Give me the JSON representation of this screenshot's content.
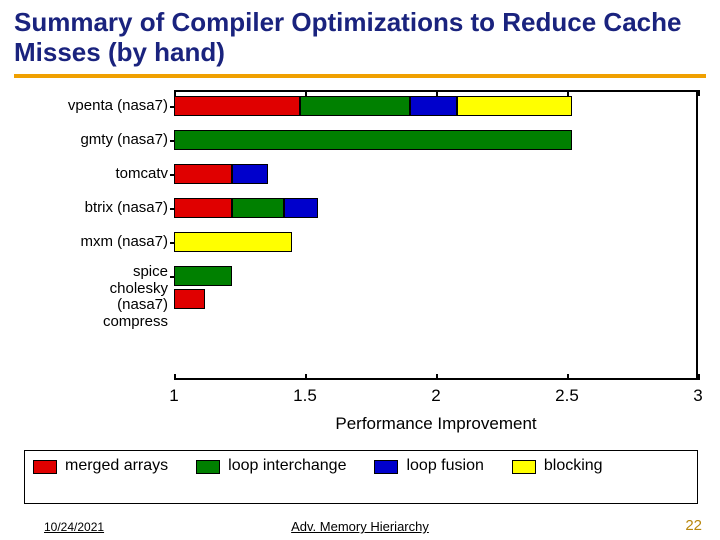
{
  "title": "Summary of Compiler Optimizations to Reduce Cache Misses (by hand)",
  "rule_color": "#f0a000",
  "chart": {
    "type": "stacked-bar-horizontal",
    "x_axis": {
      "title": "Performance Improvement",
      "min": 1,
      "max": 3,
      "ticks": [
        1,
        1.5,
        2,
        2.5,
        3
      ],
      "tick_labels": [
        "1",
        "1.5",
        "2",
        "2.5",
        "3"
      ],
      "title_fontsize": 17,
      "tick_fontsize": 17
    },
    "series_colors": {
      "merged": "#e00000",
      "interchange": "#008000",
      "fusion": "#0000cc",
      "blocking": "#ffff00"
    },
    "bar_border": "#000000",
    "plot_border": "#000000",
    "background": "#ffffff",
    "categories": [
      {
        "label": "vpenta (nasa7)",
        "segments": [
          {
            "series": "merged",
            "from": 1.0,
            "to": 1.48
          },
          {
            "series": "interchange",
            "from": 1.48,
            "to": 1.9
          },
          {
            "series": "fusion",
            "from": 1.9,
            "to": 2.08
          },
          {
            "series": "blocking",
            "from": 2.08,
            "to": 2.52
          }
        ]
      },
      {
        "label": "gmty (nasa7)",
        "segments": [
          {
            "series": "interchange",
            "from": 1.0,
            "to": 2.52
          }
        ]
      },
      {
        "label": "tomcatv",
        "segments": [
          {
            "series": "merged",
            "from": 1.0,
            "to": 1.22
          },
          {
            "series": "fusion",
            "from": 1.22,
            "to": 1.36
          }
        ]
      },
      {
        "label": "btrix (nasa7)",
        "segments": [
          {
            "series": "merged",
            "from": 1.0,
            "to": 1.22
          },
          {
            "series": "interchange",
            "from": 1.22,
            "to": 1.42
          },
          {
            "series": "fusion",
            "from": 1.42,
            "to": 1.55
          }
        ]
      },
      {
        "label": "mxm (nasa7)",
        "segments": [
          {
            "series": "blocking",
            "from": 1.0,
            "to": 1.45
          }
        ]
      },
      {
        "label": "spice\ncholesky\n(nasa7)\ncompress",
        "multiline": true,
        "segments": [
          {
            "series": "interchange",
            "from": 1.0,
            "to": 1.22
          },
          {
            "series": "merged",
            "from": 1.0,
            "to": 1.12,
            "offset_row": 1
          }
        ]
      }
    ]
  },
  "legend": {
    "items": [
      {
        "series": "merged",
        "label": "merged arrays"
      },
      {
        "series": "interchange",
        "label": "loop interchange"
      },
      {
        "series": "fusion",
        "label": "loop fusion"
      },
      {
        "series": "blocking",
        "label": "blocking"
      }
    ]
  },
  "footer": {
    "date": "10/24/2021",
    "center": "Adv. Memory Hieriarchy",
    "page": "22",
    "page_color": "#b8860b"
  }
}
